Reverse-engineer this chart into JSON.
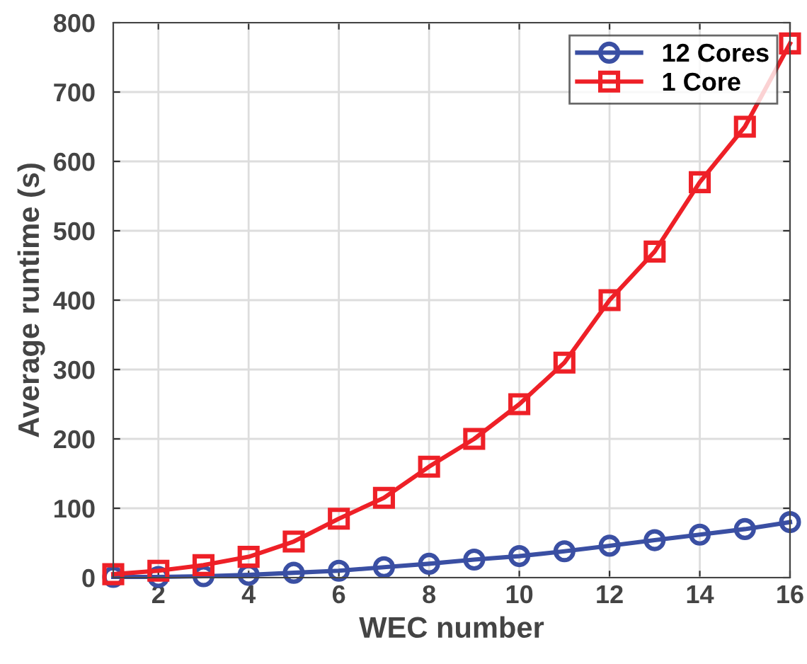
{
  "chart_data": {
    "type": "line",
    "xlabel": "WEC number",
    "ylabel": "Average runtime (s)",
    "x": [
      1,
      2,
      3,
      4,
      5,
      6,
      7,
      8,
      9,
      10,
      11,
      12,
      13,
      14,
      15,
      16
    ],
    "series": [
      {
        "name": "12 Cores",
        "color": "#3a4fa3",
        "marker": "circle",
        "values": [
          1,
          1,
          2,
          4,
          7,
          10,
          15,
          20,
          26,
          31,
          38,
          46,
          54,
          62,
          70,
          80
        ]
      },
      {
        "name": "1 Core",
        "color": "#ee2027",
        "marker": "square",
        "values": [
          5,
          10,
          18,
          30,
          52,
          85,
          115,
          160,
          200,
          250,
          310,
          400,
          470,
          570,
          650,
          770
        ]
      }
    ],
    "xlim": [
      1,
      16
    ],
    "xticks": [
      2,
      4,
      6,
      8,
      10,
      12,
      14,
      16
    ],
    "ylim": [
      0,
      800
    ],
    "yticks": [
      0,
      100,
      200,
      300,
      400,
      500,
      600,
      700,
      800
    ],
    "grid": true,
    "legend": "top right",
    "line_style": "solid"
  }
}
